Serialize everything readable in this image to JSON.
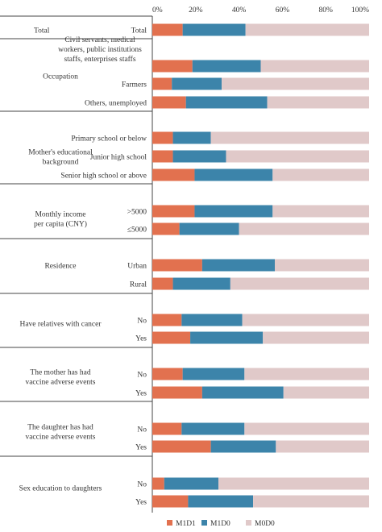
{
  "chart_data": {
    "type": "bar",
    "stacked": true,
    "percent": true,
    "orientation": "horizontal",
    "xlim": [
      0,
      100
    ],
    "ticks": [
      "0%",
      "20%",
      "40%",
      "60%",
      "80%",
      "100%"
    ],
    "grid": false,
    "legend_position": "bottom",
    "colors": {
      "M1D1": "#e2714f",
      "M1D0": "#3c84aa",
      "M0D0": "#e0c9c9"
    },
    "series_names": [
      "M1D1",
      "M1D0",
      "M0D0"
    ],
    "groups": [
      {
        "label": [
          "Total"
        ],
        "rows": [
          {
            "label": [
              "Total"
            ],
            "values": [
              14.0,
              29.0,
              57.0
            ]
          }
        ]
      },
      {
        "label": [
          "Occupation"
        ],
        "rows": [
          {
            "label": [
              "Civil servants, medical",
              "workers, public institutions",
              "staffs, enterprises staffs"
            ],
            "values": [
              18.5,
              31.5,
              50.0
            ]
          },
          {
            "label": [
              "Farmers"
            ],
            "values": [
              9.0,
              23.0,
              68.0
            ]
          },
          {
            "label": [
              "Others, unemployed"
            ],
            "values": [
              15.5,
              37.5,
              47.0
            ]
          }
        ]
      },
      {
        "label": [
          "Mother's educational",
          "background"
        ],
        "rows": [
          {
            "label": [
              "Primary school or below"
            ],
            "values": [
              9.5,
              17.5,
              73.0
            ]
          },
          {
            "label": [
              "Junior high school"
            ],
            "values": [
              9.5,
              24.5,
              66.0
            ]
          },
          {
            "label": [
              "Senior high school or above"
            ],
            "values": [
              19.5,
              36.0,
              44.5
            ]
          }
        ]
      },
      {
        "label": [
          "Monthly income",
          "per capita (CNY)"
        ],
        "rows": [
          {
            "label": [
              ">5000"
            ],
            "values": [
              19.5,
              36.0,
              44.5
            ]
          },
          {
            "label": [
              "≤5000"
            ],
            "values": [
              12.5,
              27.5,
              60.0
            ]
          }
        ]
      },
      {
        "label": [
          "Residence"
        ],
        "rows": [
          {
            "label": [
              "Urban"
            ],
            "values": [
              23.0,
              33.5,
              43.5
            ]
          },
          {
            "label": [
              "Rural"
            ],
            "values": [
              9.5,
              26.5,
              64.0
            ]
          }
        ]
      },
      {
        "label": [
          "Have relatives with cancer"
        ],
        "rows": [
          {
            "label": [
              "No"
            ],
            "values": [
              13.5,
              28.0,
              58.5
            ]
          },
          {
            "label": [
              "Yes"
            ],
            "values": [
              17.5,
              33.5,
              49.0
            ]
          }
        ]
      },
      {
        "label": [
          "The mother has had",
          "vaccine adverse events"
        ],
        "rows": [
          {
            "label": [
              "No"
            ],
            "values": [
              14.0,
              28.5,
              57.5
            ]
          },
          {
            "label": [
              "Yes"
            ],
            "values": [
              23.0,
              37.5,
              39.5
            ]
          }
        ]
      },
      {
        "label": [
          "The daughter has had",
          "vaccine adverse events"
        ],
        "rows": [
          {
            "label": [
              "No"
            ],
            "values": [
              13.5,
              29.0,
              57.5
            ]
          },
          {
            "label": [
              "Yes"
            ],
            "values": [
              27.0,
              30.0,
              43.0
            ]
          }
        ]
      },
      {
        "label": [
          "Sex education to daughters"
        ],
        "rows": [
          {
            "label": [
              "No"
            ],
            "values": [
              5.5,
              25.0,
              69.5
            ]
          },
          {
            "label": [
              "Yes"
            ],
            "values": [
              16.5,
              30.0,
              53.5
            ]
          }
        ]
      }
    ]
  }
}
